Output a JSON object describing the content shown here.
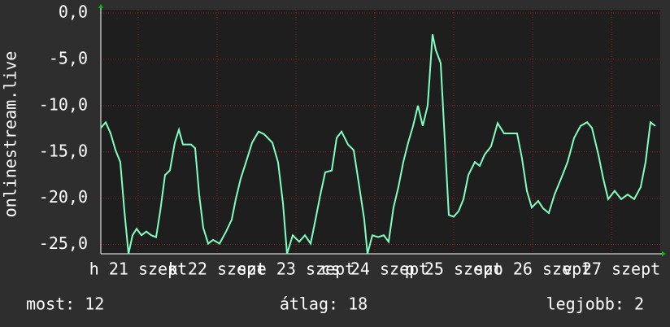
{
  "chart_data": {
    "type": "line",
    "y_label": "onlinestream.live",
    "x": [
      0,
      0.062,
      0.124,
      0.186,
      0.247,
      0.299,
      0.351,
      0.402,
      0.454,
      0.515,
      0.577,
      0.639,
      0.701,
      0.753,
      0.814,
      0.876,
      0.938,
      0.99,
      1.041,
      1.144,
      1.196,
      1.247,
      1.299,
      1.361,
      1.423,
      1.505,
      1.588,
      1.66,
      1.711,
      1.773,
      1.856,
      1.918,
      2.0,
      2.072,
      2.175,
      2.247,
      2.309,
      2.361,
      2.433,
      2.515,
      2.588,
      2.66,
      2.722,
      2.784,
      2.845,
      2.928,
      2.99,
      3.052,
      3.134,
      3.206,
      3.278,
      3.34,
      3.381,
      3.443,
      3.515,
      3.588,
      3.649,
      3.711,
      3.773,
      3.835,
      3.897,
      3.959,
      4.021,
      4.082,
      4.144,
      4.206,
      4.247,
      4.309,
      4.371,
      4.412,
      4.474,
      4.536,
      4.598,
      4.66,
      4.742,
      4.804,
      4.866,
      4.948,
      5.031,
      5.113,
      5.278,
      5.34,
      5.402,
      5.464,
      5.546,
      5.608,
      5.68,
      5.753,
      5.835,
      5.918,
      6.0,
      6.082,
      6.165,
      6.227,
      6.309,
      6.371,
      6.433,
      6.515,
      6.598,
      6.68,
      6.763,
      6.845,
      6.907,
      6.969,
      7.031
    ],
    "series": [
      {
        "name": "onlinestream.live",
        "color": "#80ffc0",
        "values": [
          -12.4,
          -11.8,
          -13,
          -14.8,
          -16.1,
          -21.4,
          -26,
          -24,
          -23.3,
          -24,
          -23.6,
          -24,
          -24.2,
          -21.4,
          -17.5,
          -17,
          -14,
          -12.6,
          -14.2,
          -14.2,
          -14.6,
          -19.6,
          -23.2,
          -24.9,
          -24.5,
          -24.9,
          -23.6,
          -22.3,
          -20.1,
          -17.9,
          -15.7,
          -14,
          -12.8,
          -13.1,
          -14,
          -16.1,
          -20.5,
          -26,
          -24,
          -24.7,
          -24,
          -24.9,
          -22.3,
          -19.6,
          -17.2,
          -17,
          -13.5,
          -12.8,
          -14.2,
          -14.8,
          -18.8,
          -22.3,
          -26,
          -24,
          -24.2,
          -24,
          -24.7,
          -21,
          -18.8,
          -16.1,
          -14,
          -12.2,
          -10,
          -12.2,
          -10,
          -2.3,
          -4,
          -5.4,
          -15.3,
          -21.8,
          -22,
          -21.4,
          -20.1,
          -17.5,
          -16.1,
          -16.5,
          -15.3,
          -14.4,
          -11.9,
          -13,
          -13,
          -15.7,
          -19.2,
          -21,
          -20.3,
          -21.1,
          -21.6,
          -19.6,
          -17.9,
          -16.1,
          -13.5,
          -12.2,
          -11.8,
          -12.4,
          -15.3,
          -17.9,
          -20.1,
          -19.2,
          -20.1,
          -19.6,
          -20.1,
          -18.8,
          -16.1,
          -11.8,
          -12.2
        ]
      }
    ],
    "xlim": [
      0,
      7.093
    ],
    "xticks": [
      {
        "value": 0.474,
        "label": "h 21 szept"
      },
      {
        "value": 1.474,
        "label": "k 22 szept"
      },
      {
        "value": 2.474,
        "label": "sze 23 szept"
      },
      {
        "value": 3.474,
        "label": "cs 24 szept"
      },
      {
        "value": 4.474,
        "label": "p 25 szept"
      },
      {
        "value": 5.474,
        "label": "szo 26 szept"
      },
      {
        "value": 6.474,
        "label": "v 27 szept"
      }
    ],
    "ylim": [
      -26,
      0.35
    ],
    "yticks": [
      {
        "value": 0,
        "label": "0,0"
      },
      {
        "value": -5,
        "label": "-5,0"
      },
      {
        "value": -10,
        "label": "-10,0"
      },
      {
        "value": -15,
        "label": "-15,0"
      },
      {
        "value": -20,
        "label": "-20,0"
      },
      {
        "value": -25,
        "label": "-25,0"
      }
    ],
    "grid": true,
    "legend_items": [
      "most: 12",
      "átlag: 18",
      "legjobb: 2"
    ]
  }
}
